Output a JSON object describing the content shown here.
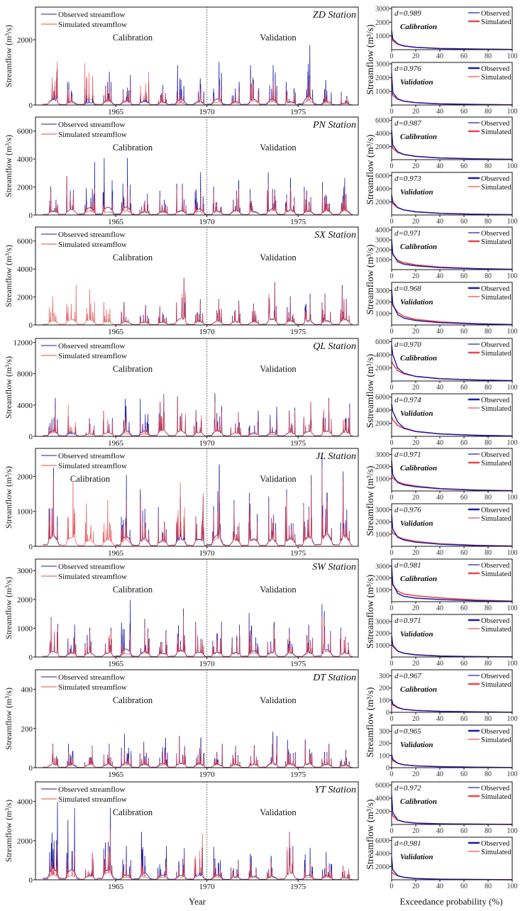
{
  "chart_data": {
    "type": "line",
    "xlabel_left": "Year",
    "xlabel_right": "Exceedance probability (%)",
    "xticks_left": [
      "1965",
      "1970",
      "1975"
    ],
    "xlim_left": [
      1960.6,
      1978.3
    ],
    "split_year": 1970,
    "xticks_right": [
      "0",
      "20",
      "40",
      "60",
      "80",
      "100"
    ],
    "xlim_right": [
      0,
      100
    ],
    "legend_left": {
      "observed": "Observed streamflow",
      "simulated": "Simulated streamflow"
    },
    "legend_right": {
      "observed": "Observed",
      "simulated": "Simulated"
    },
    "periods": {
      "calibration": "Calibration",
      "validation": "Validation"
    },
    "colors": {
      "observed": "#1a1aa8",
      "simulated": "#e8474a"
    },
    "exceedance_pct": [
      0,
      1,
      5,
      10,
      20,
      40,
      70,
      100
    ],
    "years": [
      1961,
      1962,
      1963,
      1964,
      1965,
      1966,
      1967,
      1968,
      1969,
      1970,
      1971,
      1972,
      1973,
      1974,
      1975,
      1976,
      1977
    ],
    "stations": [
      {
        "label": "ZD Station",
        "ylabel": "Streamflow (m³/s)",
        "yticks": [
          0,
          2000
        ],
        "ylim": [
          0,
          3000
        ],
        "annual_peak_observed": [
          1100,
          700,
          500,
          1000,
          900,
          700,
          600,
          1200,
          800,
          1300,
          700,
          1200,
          1200,
          700,
          1800,
          750,
          400
        ],
        "annual_peak_simulated": [
          1300,
          450,
          1250,
          700,
          600,
          1000,
          450,
          400,
          500,
          600,
          400,
          800,
          700,
          500,
          800,
          400,
          300
        ],
        "fdc_ylabel": "Streamflow (m³/s)",
        "fdc_yticks": [
          1000,
          2000,
          3000
        ],
        "fdc_ylim": [
          0,
          3100
        ],
        "calibration": {
          "d": "d=0.989",
          "observed": [
            1400,
            770,
            420,
            280,
            170,
            85,
            42,
            14
          ],
          "simulated": [
            900,
            650,
            400,
            270,
            170,
            90,
            45,
            15
          ]
        },
        "validation": {
          "d": "d=0.976",
          "observed": [
            2300,
            900,
            450,
            290,
            170,
            85,
            40,
            12
          ],
          "simulated": [
            1000,
            700,
            420,
            280,
            170,
            88,
            42,
            14
          ]
        }
      },
      {
        "label": "PN Station",
        "ylabel": "Streamflow (m³/s)",
        "yticks": [
          0,
          2000,
          4000,
          6000
        ],
        "ylim": [
          0,
          7000
        ],
        "annual_peak_observed": [
          2000,
          2700,
          3700,
          4000,
          4000,
          1500,
          1700,
          2200,
          3000,
          2000,
          2400,
          1800,
          3000,
          2600,
          2000,
          2300,
          2600
        ],
        "annual_peak_simulated": [
          1600,
          2700,
          1900,
          1500,
          2000,
          1200,
          1300,
          1800,
          1600,
          1500,
          1800,
          1400,
          2200,
          1900,
          1600,
          1800,
          1800
        ],
        "fdc_ylabel": "Streamflow (m³/s)",
        "fdc_yticks": [
          2000,
          4000,
          6000
        ],
        "fdc_ylim": [
          0,
          6500
        ],
        "calibration": {
          "d": "d=0.987",
          "observed": [
            4500,
            2200,
            1200,
            800,
            500,
            250,
            120,
            40
          ],
          "simulated": [
            2200,
            1700,
            1100,
            780,
            510,
            260,
            125,
            45
          ]
        },
        "validation": {
          "d": "d=0.973",
          "observed": [
            3100,
            2000,
            1150,
            780,
            490,
            245,
            115,
            40
          ],
          "simulated": [
            2100,
            1700,
            1100,
            770,
            500,
            250,
            118,
            42
          ]
        }
      },
      {
        "label": "SX Station",
        "ylabel": "Streamflow (m³/s)",
        "yticks": [
          0,
          2000,
          4000,
          6000
        ],
        "ylim": [
          0,
          7000
        ],
        "annual_peak_observed": [
          null,
          null,
          null,
          null,
          1600,
          1400,
          1300,
          3300,
          1800,
          1800,
          1700,
          1500,
          3000,
          2000,
          2200,
          2200,
          2800
        ],
        "annual_peak_simulated": [
          2000,
          2800,
          2500,
          1600,
          1500,
          1200,
          1200,
          3300,
          1500,
          1700,
          1500,
          1400,
          2800,
          1800,
          1800,
          1900,
          2500
        ],
        "fdc_ylabel": "Streamflow (m³/s)",
        "fdc_yticks": [
          1000,
          2000,
          3000,
          4000
        ],
        "fdc_ylim": [
          0,
          4300
        ],
        "fdc_yticks_validation": [
          1000,
          2000,
          3000
        ],
        "fdc_ylim_validation": [
          0,
          3700
        ],
        "calibration": {
          "d": "d=0.971",
          "observed": [
            3000,
            1600,
            800,
            550,
            380,
            200,
            90,
            30
          ],
          "simulated": [
            2000,
            1500,
            950,
            700,
            480,
            260,
            110,
            35
          ]
        },
        "validation": {
          "d": "d=0.968",
          "observed": [
            3100,
            1800,
            900,
            600,
            380,
            200,
            90,
            30
          ],
          "simulated": [
            2300,
            1700,
            1100,
            750,
            480,
            270,
            110,
            35
          ]
        }
      },
      {
        "label": "QL Station",
        "ylabel": "Streamflow (m³/s)",
        "yticks": [
          0,
          4000,
          8000,
          12000
        ],
        "ylim": [
          0,
          12500
        ],
        "annual_peak_observed": [
          4800,
          2500,
          2200,
          3200,
          4700,
          4700,
          5300,
          5000,
          3300,
          5400,
          3000,
          3200,
          3700,
          3600,
          4300,
          4800,
          4100
        ],
        "annual_peak_simulated": [
          3400,
          4000,
          2000,
          3200,
          2500,
          2000,
          5300,
          4800,
          3300,
          4300,
          3000,
          2000,
          1800,
          3200,
          4300,
          4500,
          3500
        ],
        "fdc_ylabel": "Sstreamflow (m³/s)",
        "fdc_yticks": [
          2000,
          4000,
          6000
        ],
        "fdc_ylim": [
          0,
          6500
        ],
        "calibration": {
          "d": "d=0.970",
          "observed": [
            5500,
            4000,
            2000,
            1200,
            700,
            350,
            150,
            50
          ],
          "simulated": [
            3000,
            2600,
            1600,
            1100,
            700,
            360,
            150,
            50
          ]
        },
        "validation": {
          "d": "d=0.974",
          "observed": [
            5000,
            3800,
            2200,
            1300,
            750,
            370,
            160,
            50
          ],
          "simulated": [
            3000,
            2500,
            1700,
            1200,
            740,
            370,
            160,
            50
          ]
        }
      },
      {
        "label": "JL Station",
        "ylabel": "Streamflow (m³/s)",
        "yticks": [
          0,
          1000,
          2000
        ],
        "ylim": [
          0,
          2800
        ],
        "annual_peak_observed": [
          2200,
          null,
          null,
          null,
          2000,
          1600,
          1100,
          1400,
          1400,
          2300,
          1300,
          1500,
          1400,
          1600,
          2000,
          2600,
          2100
        ],
        "annual_peak_simulated": [
          1900,
          1800,
          1200,
          1300,
          1300,
          1300,
          1000,
          1800,
          1500,
          1600,
          1200,
          1300,
          1200,
          1400,
          1700,
          2200,
          1800
        ],
        "fdc_ylabel": "Streamflow (m³/s)",
        "fdc_yticks": [
          1000,
          2000,
          3000
        ],
        "fdc_ylim": [
          0,
          3500
        ],
        "calibration": {
          "d": "d=0.971",
          "observed": [
            2500,
            1300,
            700,
            500,
            350,
            180,
            70,
            20
          ],
          "simulated": [
            1200,
            1050,
            750,
            580,
            400,
            200,
            75,
            25
          ]
        },
        "validation": {
          "d": "d=0.976",
          "observed": [
            2600,
            1400,
            750,
            520,
            340,
            170,
            65,
            20
          ],
          "simulated": [
            1300,
            1100,
            800,
            600,
            400,
            210,
            80,
            25
          ]
        }
      },
      {
        "label": "SW Station",
        "ylabel": "Streamflow (m³/s)",
        "yticks": [
          0,
          1000,
          2000,
          3000
        ],
        "ylim": [
          0,
          3400
        ],
        "annual_peak_observed": [
          1350,
          1100,
          1000,
          1000,
          1950,
          1300,
          900,
          1650,
          1200,
          1200,
          1100,
          1500,
          1200,
          1000,
          1100,
          1800,
          1000
        ],
        "annual_peak_simulated": [
          1300,
          800,
          900,
          900,
          800,
          1000,
          800,
          1400,
          1100,
          1000,
          900,
          1000,
          1000,
          800,
          900,
          1400,
          900
        ],
        "fdc_ylabel": "Sstreamflow (m³/s)",
        "fdc_yticks": [
          1000,
          2000,
          3000
        ],
        "fdc_ylim": [
          0,
          3600
        ],
        "calibration": {
          "d": "d=0.981",
          "observed": [
            3100,
            1500,
            700,
            450,
            300,
            180,
            80,
            30
          ],
          "simulated": [
            2000,
            1400,
            900,
            650,
            500,
            320,
            140,
            40
          ]
        },
        "validation": {
          "d": "d=0.971",
          "observed": [
            1800,
            1000,
            500,
            320,
            180,
            80,
            30,
            10
          ],
          "simulated": [
            1200,
            900,
            500,
            330,
            190,
            85,
            32,
            10
          ]
        }
      },
      {
        "label": "DT Station",
        "ylabel": "Streamflow (m³/s)",
        "yticks": [
          0,
          200,
          400
        ],
        "ylim": [
          0,
          500
        ],
        "annual_peak_observed": [
          120,
          120,
          110,
          120,
          170,
          130,
          150,
          160,
          150,
          120,
          110,
          110,
          180,
          140,
          140,
          120,
          90
        ],
        "annual_peak_simulated": [
          110,
          80,
          100,
          100,
          100,
          100,
          90,
          140,
          100,
          100,
          90,
          100,
          130,
          100,
          120,
          100,
          70
        ],
        "fdc_ylabel": "Streamflow (m³/s)",
        "fdc_yticks": [
          0,
          100,
          200,
          300
        ],
        "fdc_ylim": [
          0,
          350
        ],
        "calibration": {
          "d": "d=0.967",
          "observed": [
            110,
            70,
            40,
            25,
            16,
            8,
            4,
            1
          ],
          "simulated": [
            80,
            60,
            38,
            25,
            16,
            8,
            4,
            1
          ]
        },
        "validation": {
          "d": "d=0.965",
          "observed": [
            110,
            68,
            38,
            24,
            15,
            8,
            4,
            1
          ],
          "simulated": [
            80,
            58,
            36,
            24,
            15,
            8,
            4,
            1
          ]
        }
      },
      {
        "label": "YT Station",
        "ylabel": "Streamflow (m³/s)",
        "yticks": [
          0,
          2000,
          4000
        ],
        "ylim": [
          0,
          5000
        ],
        "annual_peak_observed": [
          3900,
          3600,
          1300,
          3600,
          1700,
          2400,
          1700,
          1600,
          1600,
          1650,
          1000,
          1300,
          1200,
          2400,
          1600,
          1400,
          700
        ],
        "annual_peak_simulated": [
          1750,
          1400,
          1400,
          2500,
          900,
          1000,
          900,
          1000,
          2300,
          900,
          800,
          900,
          900,
          2300,
          800,
          900,
          700
        ],
        "fdc_ylabel": "Streamflow (m³/s)",
        "fdc_yticks": [
          2000,
          4000,
          6000
        ],
        "fdc_ylim": [
          0,
          6500
        ],
        "calibration": {
          "d": "d=0.972",
          "observed": [
            4500,
            1800,
            700,
            400,
            200,
            90,
            40,
            10
          ],
          "simulated": [
            1800,
            1300,
            650,
            400,
            210,
            95,
            40,
            10
          ]
        },
        "validation": {
          "d": "d=0.981",
          "observed": [
            3500,
            1500,
            650,
            380,
            200,
            90,
            40,
            10
          ],
          "simulated": [
            1200,
            1000,
            600,
            380,
            200,
            92,
            40,
            10
          ]
        }
      }
    ]
  }
}
